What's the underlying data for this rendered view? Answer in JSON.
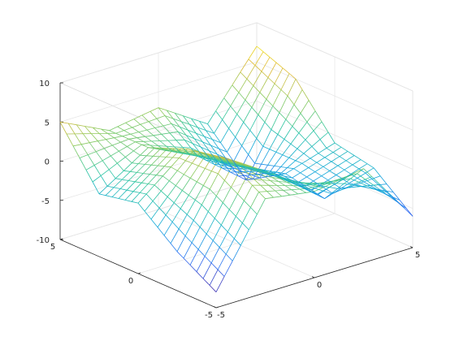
{
  "chart_data": {
    "type": "mesh",
    "title": "",
    "xlabel": "",
    "ylabel": "",
    "zlabel": "",
    "xlim": [
      -5,
      5
    ],
    "ylim": [
      -5,
      5
    ],
    "zlim": [
      -10,
      10
    ],
    "ticks": {
      "x": [
        -5,
        0,
        5
      ],
      "y": [
        -5,
        0,
        5
      ],
      "z": [
        -10,
        -5,
        0,
        5,
        10
      ]
    },
    "grid": true,
    "colormap": "parula",
    "colormap_stops": [
      "#3e26a8",
      "#2f6ef4",
      "#12a9da",
      "#2cc5a0",
      "#8fca5c",
      "#e0b936",
      "#f8fa0d"
    ],
    "surface_samples": {
      "x": [
        -5,
        -2.5,
        0,
        2.5,
        5
      ],
      "y": [
        -5,
        -2.5,
        0,
        2.5,
        5
      ],
      "z": [
        [
          -8.0,
          2.0,
          1.0,
          2.0,
          -6.0
        ],
        [
          -5.0,
          5.0,
          1.0,
          -4.0,
          -2.0
        ],
        [
          -1.0,
          4.0,
          0.0,
          -3.0,
          -1.0
        ],
        [
          -2.0,
          2.0,
          -1.0,
          -6.0,
          5.0
        ],
        [
          5.0,
          2.0,
          3.0,
          -1.0,
          7.0
        ]
      ],
      "note": ""
    }
  }
}
